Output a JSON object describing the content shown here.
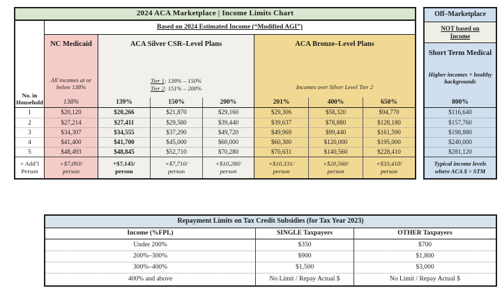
{
  "colors": {
    "title_green": "#d9e6d0",
    "medicaid_pink": "#f5cbc8",
    "silver_gray": "#f1f0ec",
    "bronze_gold": "#f2d993",
    "off_market_blue": "#cfdfef",
    "repay_header_blue": "#d6e3ec",
    "border_dark": "#212121"
  },
  "main_table": {
    "title": "2024 ACA Marketplace | Income Limits Chart",
    "subheader": "Based on 2024 Estimated Income (“Modified AGI”)",
    "household_label_top": "No. in",
    "household_label_bottom": "Household",
    "medicaid": {
      "title": "NC Medicaid",
      "subtitle": "All incomes at or below 138%",
      "percent": "138%"
    },
    "silver": {
      "title": "ACA Silver CSR–Level Plans",
      "tier1_label": "Tier 1",
      "tier1_rest": ": 139% – 150%",
      "tier2_label": "Tier 2",
      "tier2_rest": ": 151% – 200%",
      "percents": [
        "139%",
        "150%",
        "200%"
      ]
    },
    "bronze": {
      "title": "ACA Bronze–Level Plans",
      "subtitle": "Incomes over Silver Level Tier 2",
      "percents": [
        "201%",
        "400%",
        "650%"
      ]
    },
    "rows": [
      {
        "label": "1",
        "values": [
          "$20,120",
          "$20,266",
          "$21,870",
          "$29,160",
          "$29,306",
          "$58,320",
          "$94,770"
        ]
      },
      {
        "label": "2",
        "values": [
          "$27,214",
          "$27,411",
          "$29,580",
          "$39,440",
          "$39,637",
          "$78,880",
          "$128,180"
        ]
      },
      {
        "label": "3",
        "values": [
          "$34,307",
          "$34,555",
          "$37,290",
          "$49,720",
          "$49,969",
          "$99,440",
          "$161,590"
        ]
      },
      {
        "label": "4",
        "values": [
          "$41,400",
          "$41,700",
          "$45,000",
          "$60,000",
          "$60,300",
          "$120,000",
          "$195,000"
        ]
      },
      {
        "label": "5",
        "values": [
          "$48,493",
          "$48,845",
          "$52,710",
          "$70,280",
          "$70,631",
          "$140,560",
          "$228,410"
        ]
      }
    ],
    "addl_row": {
      "label_top": "+ Add’l",
      "label_bottom": "Person",
      "values": [
        "+$7,093/",
        "+$7,145/",
        "+$7,710/",
        "+$10,280/",
        "+$10,331/",
        "+$20,560/",
        "+$33,410/"
      ],
      "suffix": "person"
    }
  },
  "off_marketplace": {
    "title": "Off–Marketplace",
    "not_based_label": "NOT based on Income",
    "stm_title": "Short Term Medical",
    "stm_subtitle": "Higher incomes + healthy backgrounds",
    "percent": "800%",
    "values": [
      "$116,640",
      "$157,760",
      "$198,880",
      "$240,000",
      "$281,120"
    ],
    "footer": "Typical income levels where ACA $ > STM"
  },
  "repayment_table": {
    "title": "Repayment Limits on Tax Credit Subsidies (for Tax Year 2023)",
    "columns": [
      "Income (%FPL)",
      "SINGLE Taxpayers",
      "OTHER Taxpayers"
    ],
    "rows": [
      {
        "income": "Under 200%",
        "single": "$350",
        "other": "$700"
      },
      {
        "income": "200%–300%",
        "single": "$900",
        "other": "$1,800"
      },
      {
        "income": "300%–400%",
        "single": "$1,500",
        "other": "$3,000"
      },
      {
        "income": "400% and above",
        "single": "No Limit / Repay Actual $",
        "other": "No Limit / Repay Actual $"
      }
    ]
  }
}
